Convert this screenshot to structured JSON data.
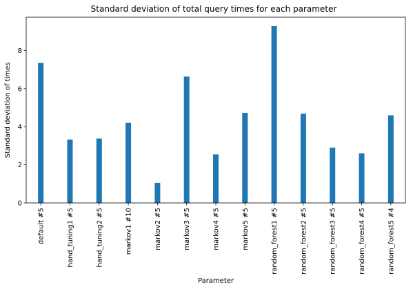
{
  "chart_data": {
    "type": "bar",
    "title": "Standard deviation of total query times for each parameter",
    "xlabel": "Parameter",
    "ylabel": "Standard deviation of times",
    "categories": [
      "default #5",
      "hand_tuning1 #5",
      "hand_tuning2 #5",
      "markov1 #10",
      "markov2 #5",
      "markov3 #5",
      "markov4 #5",
      "markov5 #5",
      "random_forest1 #5",
      "random_forest2 #5",
      "random_forest3 #5",
      "random_forest4 #5",
      "random_forest5 #4"
    ],
    "values": [
      7.35,
      3.33,
      3.38,
      4.2,
      1.05,
      6.63,
      2.55,
      4.73,
      9.28,
      4.68,
      2.9,
      2.6,
      4.6
    ],
    "ylim": [
      0,
      9.75
    ],
    "yticks": [
      0,
      2,
      4,
      6,
      8
    ],
    "grid": false,
    "bar_color": "#1f77b4"
  }
}
